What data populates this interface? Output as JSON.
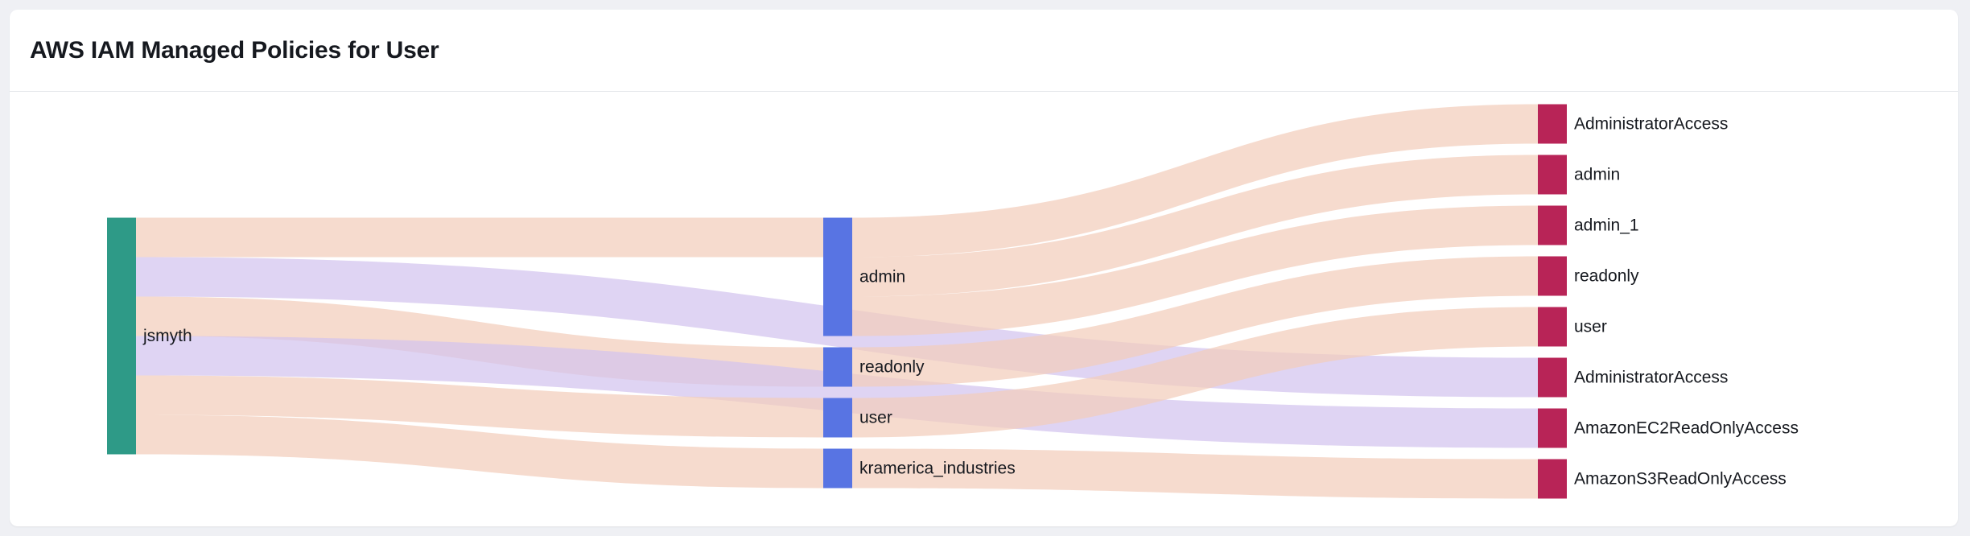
{
  "card": {
    "title": "AWS IAM Managed Policies for User"
  },
  "colors": {
    "user_node": "#2e9a87",
    "group_node": "#5874e3",
    "policy_node": "#b82457",
    "link_direct": "#f3cdbb",
    "link_group": "#d2c3ee",
    "page_bg": "#eff0f4",
    "card_bg": "#ffffff"
  },
  "chart_data": {
    "type": "sankey",
    "title": "AWS IAM Managed Policies for User",
    "nodes": [
      {
        "id": "u_jsmyth",
        "label": "jsmyth",
        "column": 0,
        "kind": "user"
      },
      {
        "id": "g_admin",
        "label": "admin",
        "column": 1,
        "kind": "group"
      },
      {
        "id": "g_readonly",
        "label": "readonly",
        "column": 1,
        "kind": "group"
      },
      {
        "id": "g_user",
        "label": "user",
        "column": 1,
        "kind": "group"
      },
      {
        "id": "g_kramerica",
        "label": "kramerica_industries",
        "column": 1,
        "kind": "group"
      },
      {
        "id": "p_admin_access_1",
        "label": "AdministratorAccess",
        "column": 2,
        "kind": "policy"
      },
      {
        "id": "p_admin",
        "label": "admin",
        "column": 2,
        "kind": "policy"
      },
      {
        "id": "p_admin_1",
        "label": "admin_1",
        "column": 2,
        "kind": "policy"
      },
      {
        "id": "p_readonly",
        "label": "readonly",
        "column": 2,
        "kind": "policy"
      },
      {
        "id": "p_user",
        "label": "user",
        "column": 2,
        "kind": "policy"
      },
      {
        "id": "p_admin_access_2",
        "label": "AdministratorAccess",
        "column": 2,
        "kind": "policy"
      },
      {
        "id": "p_ec2_ro",
        "label": "AmazonEC2ReadOnlyAccess",
        "column": 2,
        "kind": "policy"
      },
      {
        "id": "p_s3_ro",
        "label": "AmazonS3ReadOnlyAccess",
        "column": 2,
        "kind": "policy"
      }
    ],
    "links": [
      {
        "source": "u_jsmyth",
        "target": "g_admin",
        "value": 1,
        "kind": "direct"
      },
      {
        "source": "u_jsmyth",
        "target": "p_admin_access_2",
        "value": 1,
        "kind": "group"
      },
      {
        "source": "u_jsmyth",
        "target": "g_readonly",
        "value": 1,
        "kind": "direct"
      },
      {
        "source": "u_jsmyth",
        "target": "p_ec2_ro",
        "value": 1,
        "kind": "group"
      },
      {
        "source": "u_jsmyth",
        "target": "g_user",
        "value": 1,
        "kind": "direct"
      },
      {
        "source": "u_jsmyth",
        "target": "g_kramerica",
        "value": 1,
        "kind": "direct"
      },
      {
        "source": "g_admin",
        "target": "p_admin_access_1",
        "value": 1,
        "kind": "direct"
      },
      {
        "source": "g_admin",
        "target": "p_admin",
        "value": 1,
        "kind": "direct"
      },
      {
        "source": "g_admin",
        "target": "p_admin_1",
        "value": 1,
        "kind": "direct"
      },
      {
        "source": "g_readonly",
        "target": "p_readonly",
        "value": 1,
        "kind": "direct"
      },
      {
        "source": "g_user",
        "target": "p_user",
        "value": 1,
        "kind": "direct"
      },
      {
        "source": "g_kramerica",
        "target": "p_s3_ro",
        "value": 1,
        "kind": "direct"
      }
    ]
  }
}
